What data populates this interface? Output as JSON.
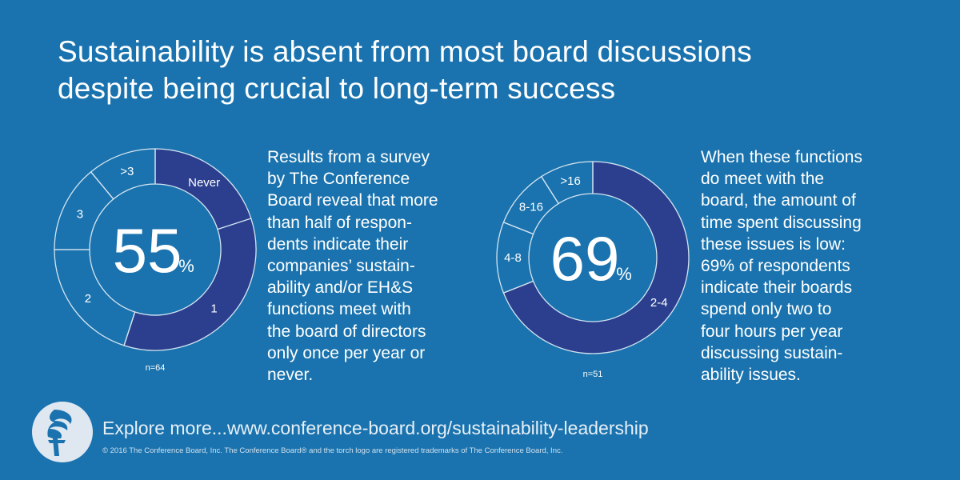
{
  "title_lines": [
    "Sustainability is absent from most board discussions",
    "despite being crucial to long-term success"
  ],
  "chart_data": [
    {
      "type": "pie",
      "style": "donut",
      "center_value": "55",
      "center_unit": "%",
      "n_label": "n=64",
      "categories": [
        "Never",
        "1",
        "2",
        "3",
        ">3"
      ],
      "values": [
        0.2,
        0.35,
        0.2,
        0.14,
        0.11
      ],
      "highlighted": [
        "Never",
        "1"
      ]
    },
    {
      "type": "pie",
      "style": "donut",
      "center_value": "69",
      "center_unit": "%",
      "n_label": "n=51",
      "categories": [
        "2-4",
        "4-8",
        "8-16",
        ">16"
      ],
      "values": [
        0.69,
        0.12,
        0.1,
        0.09
      ],
      "highlighted": [
        "2-4"
      ]
    }
  ],
  "paragraph1_lines": [
    "Results from a survey",
    "by The Conference",
    "Board reveal that more",
    "than half of respon-",
    "dents indicate their",
    "companies’ sustain-",
    "ability and/or EH&S",
    "functions meet with",
    "the board of directors",
    "only once per year or",
    "never."
  ],
  "paragraph2_lines": [
    "When these functions",
    "do meet with the",
    "board, the amount of",
    "time spent discussing",
    "these issues is low:",
    "69% of respondents",
    "indicate their boards",
    "spend only two to",
    "four hours per year",
    "discussing sustain-",
    "ability issues."
  ],
  "footer": {
    "explore": "Explore more...www.conference-board.org/sustainability-leadership",
    "copyright": "© 2016 The Conference Board, Inc. The Conference Board® and the torch logo are registered trademarks of The Conference Board, Inc.",
    "logo_icon": "torch-logo-icon"
  },
  "colors": {
    "background": "#1a73ae",
    "highlight": "#2b3f8e",
    "ring_line": "#d4e4f1",
    "text": "#ffffff"
  }
}
